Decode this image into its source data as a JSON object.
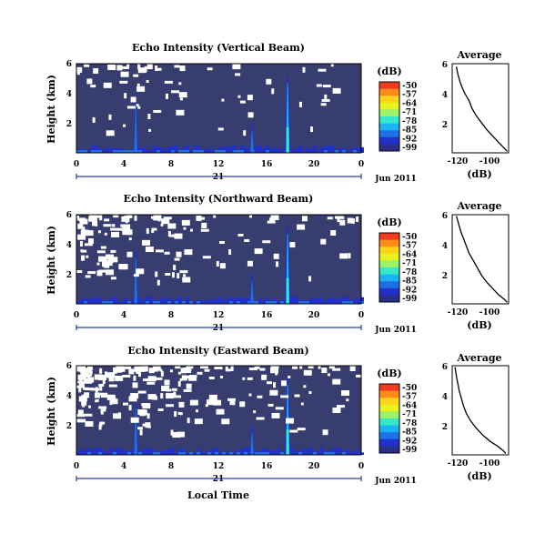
{
  "colors": {
    "background_field": "#373d6e",
    "plot_bg": "#ffffff",
    "date_axis": "#2a3fb0"
  },
  "colorbar": {
    "unit_label": "(dB)",
    "tick_labels": [
      "-50",
      "-57",
      "-64",
      "-71",
      "-78",
      "-85",
      "-92",
      "-99"
    ],
    "colormap": [
      "#f23a1e",
      "#ff8a1a",
      "#ffd21a",
      "#e8f21e",
      "#9cf26a",
      "#37e8c8",
      "#1ab4f2",
      "#1f6fe6",
      "#2030c8",
      "#2a2f8a"
    ]
  },
  "xaxis": {
    "hour_ticks": [
      "0",
      "4",
      "8",
      "12",
      "16",
      "20",
      "0"
    ],
    "day_label": "21",
    "month_label": "Jun 2011",
    "xlabel": "Local Time"
  },
  "chart_data": [
    {
      "type": "heatmap",
      "title": "Echo Intensity (Vertical Beam)",
      "ylabel": "Height (km)",
      "ytick_labels": [
        "6",
        "4",
        "2"
      ],
      "ylim_km": [
        0,
        6
      ],
      "xlim_hours": [
        0,
        24
      ],
      "background_dB": -96,
      "features": [
        {
          "kind": "plume",
          "hour": 5.0,
          "top_km": 3.6,
          "dB": -85
        },
        {
          "kind": "plume",
          "hour": 14.8,
          "top_km": 2.0,
          "dB": -85
        },
        {
          "kind": "plume",
          "hour": 17.8,
          "top_km": 5.2,
          "dB": -64
        },
        {
          "kind": "surface_layer",
          "height_km": 0.4,
          "dB": -85
        }
      ],
      "missing_fraction": 0.05
    },
    {
      "type": "heatmap",
      "title": "Echo Intensity (Northward Beam)",
      "ylabel": "Height (km)",
      "ytick_labels": [
        "6",
        "4",
        "2"
      ],
      "ylim_km": [
        0,
        6
      ],
      "xlim_hours": [
        0,
        24
      ],
      "background_dB": -96,
      "features": [
        {
          "kind": "plume",
          "hour": 5.0,
          "top_km": 3.6,
          "dB": -85
        },
        {
          "kind": "plume",
          "hour": 14.8,
          "top_km": 2.0,
          "dB": -85
        },
        {
          "kind": "plume",
          "hour": 17.8,
          "top_km": 5.2,
          "dB": -64
        },
        {
          "kind": "surface_layer",
          "height_km": 0.4,
          "dB": -85
        }
      ],
      "missing_fraction": 0.1
    },
    {
      "type": "heatmap",
      "title": "Echo Intensity (Eastward Beam)",
      "ylabel": "Height (km)",
      "ytick_labels": [
        "6",
        "4",
        "2"
      ],
      "ylim_km": [
        0,
        6
      ],
      "xlim_hours": [
        0,
        24
      ],
      "background_dB": -96,
      "features": [
        {
          "kind": "plume",
          "hour": 5.0,
          "top_km": 3.6,
          "dB": -85
        },
        {
          "kind": "plume",
          "hour": 14.8,
          "top_km": 2.0,
          "dB": -85
        },
        {
          "kind": "plume",
          "hour": 17.8,
          "top_km": 5.2,
          "dB": -64
        },
        {
          "kind": "surface_layer",
          "height_km": 0.4,
          "dB": -85
        }
      ],
      "missing_fraction": 0.16
    },
    {
      "type": "line",
      "title": "Average",
      "xlabel": "(dB)",
      "xtick_labels": [
        "-120",
        "-100"
      ],
      "xlim": [
        -125,
        -85
      ],
      "ylim": [
        0,
        6
      ],
      "ytick_labels": [
        "6",
        "4",
        "2"
      ],
      "series": [
        {
          "x": [
            -122,
            -121,
            -119.5,
            -118,
            -116,
            -113,
            -111,
            -108,
            -104,
            -100,
            -96,
            -92,
            -88,
            -86
          ],
          "y": [
            5.8,
            5.3,
            4.8,
            4.4,
            4.0,
            3.5,
            3.0,
            2.5,
            2.0,
            1.5,
            1.1,
            0.7,
            0.3,
            0.1
          ]
        }
      ]
    },
    {
      "type": "line",
      "title": "Average",
      "xlabel": "(dB)",
      "xtick_labels": [
        "-120",
        "-100"
      ],
      "xlim": [
        -125,
        -85
      ],
      "ylim": [
        0,
        6
      ],
      "ytick_labels": [
        "6",
        "4",
        "2"
      ],
      "series": [
        {
          "x": [
            -122,
            -120.5,
            -119,
            -117,
            -115,
            -113,
            -110,
            -107,
            -104,
            -100,
            -96,
            -92,
            -88,
            -86
          ],
          "y": [
            5.9,
            5.4,
            4.9,
            4.4,
            3.9,
            3.4,
            2.9,
            2.4,
            1.9,
            1.4,
            1.0,
            0.6,
            0.3,
            0.1
          ]
        }
      ]
    },
    {
      "type": "line",
      "title": "Average",
      "xlabel": "(dB)",
      "xtick_labels": [
        "-120",
        "-100"
      ],
      "xlim": [
        -125,
        -85
      ],
      "ylim": [
        0,
        6
      ],
      "ytick_labels": [
        "6",
        "4",
        "2"
      ],
      "series": [
        {
          "x": [
            -123,
            -122,
            -121,
            -120,
            -118.5,
            -117,
            -115,
            -112,
            -108,
            -103,
            -98,
            -93,
            -89,
            -87
          ],
          "y": [
            5.9,
            5.3,
            4.8,
            4.3,
            3.8,
            3.3,
            2.8,
            2.3,
            1.8,
            1.3,
            0.9,
            0.6,
            0.3,
            0.1
          ]
        }
      ]
    }
  ]
}
